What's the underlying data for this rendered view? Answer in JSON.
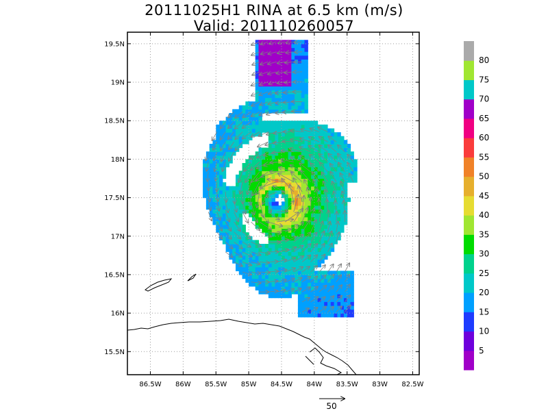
{
  "chart_data": {
    "type": "heatmap",
    "title": "20111025H1 RINA at 6.5 km (m/s)",
    "subtitle": "Valid: 201110260057",
    "x_ticks": [
      "86.5W",
      "86W",
      "85.5W",
      "85W",
      "84.5W",
      "84W",
      "83.5W",
      "83W",
      "82.5W"
    ],
    "x_values": [
      -86.5,
      -86.0,
      -85.5,
      -85.0,
      -84.5,
      -84.0,
      -83.5,
      -83.0,
      -82.5
    ],
    "y_ticks": [
      "15.5N",
      "16N",
      "16.5N",
      "17N",
      "17.5N",
      "18N",
      "18.5N",
      "19N",
      "19.5N"
    ],
    "y_values": [
      15.5,
      16.0,
      16.5,
      17.0,
      17.5,
      18.0,
      18.5,
      19.0,
      19.5
    ],
    "xlim": [
      -86.85,
      -82.4
    ],
    "ylim": [
      15.2,
      19.65
    ],
    "grid": true,
    "field": {
      "variable": "wind speed",
      "units": "m/s",
      "center": [
        -84.55,
        17.45
      ],
      "radius_of_max_wind_deg": 0.28,
      "max_speed": 43
    },
    "colorbar": {
      "labels": [
        "5",
        "10",
        "15",
        "20",
        "25",
        "30",
        "35",
        "40",
        "45",
        "50",
        "55",
        "60",
        "65",
        "70",
        "75",
        "80"
      ],
      "colors": [
        "#a000c8",
        "#6e00dc",
        "#1e3cff",
        "#00a0ff",
        "#00c8c8",
        "#00d28c",
        "#00dc00",
        "#a0e632",
        "#e6dc32",
        "#e6af2d",
        "#f08228",
        "#fa3c3c",
        "#f00082",
        "#a000c8",
        "#00c8c8",
        "#a0e632",
        "#aaaaaa"
      ]
    },
    "reference_vector": {
      "label": "50",
      "speed": 50
    }
  }
}
